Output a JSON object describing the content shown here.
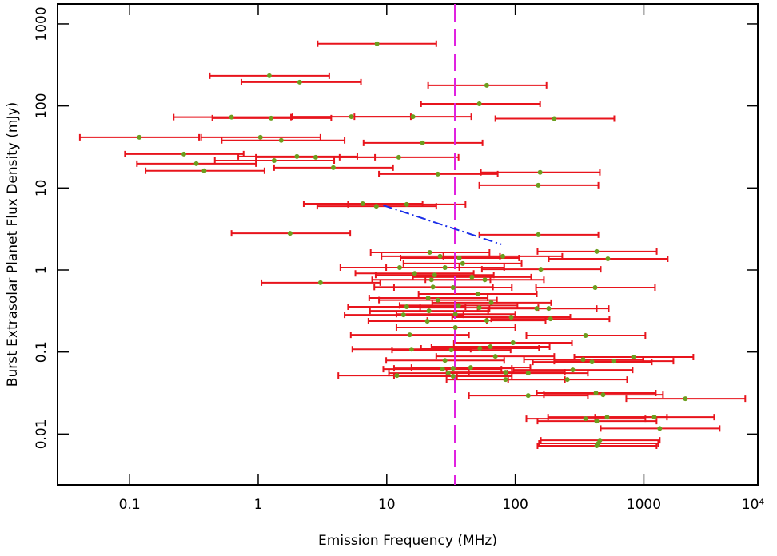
{
  "chart_data": {
    "type": "scatter",
    "x_label": "Emission Frequency (MHz)",
    "y_label": "Burst Extrasolar Planet Flux Density (mJy)",
    "log_x": true,
    "log_y": true,
    "xlim": [
      0.0275,
      7700
    ],
    "ylim": [
      0.0024,
      1750
    ],
    "xticks": [
      0.1,
      1,
      10,
      100,
      1000,
      {
        "value": 10000,
        "label": "10⁴"
      }
    ],
    "yticks": [
      0.01,
      0.1,
      1,
      10,
      100,
      1000
    ],
    "color": "#e8141c",
    "marker_color": "#6c9e1e",
    "label_color": "#00e8f0",
    "x": [
      8.4,
      1.22,
      2.1,
      60,
      52.5,
      0.62,
      1.26,
      5.3,
      16,
      201,
      0.119,
      1.04,
      1.51,
      19,
      0.264,
      2.0,
      2.8,
      12.4,
      1.33,
      0.33,
      3.84,
      0.38,
      25,
      156,
      151,
      6.5,
      8.3,
      14.3,
      1.77,
      151,
      80,
      430,
      525,
      21.6,
      26,
      36.7,
      158,
      12.6,
      28.4,
      16.5,
      46,
      23.6,
      3.05,
      418,
      58,
      22.3,
      22.9,
      32.8,
      51,
      21,
      65,
      25,
      36.2,
      14.3,
      52.5,
      21.3,
      147,
      182,
      34.2,
      13.5,
      93,
      60,
      188,
      20.7,
      34.2,
      15.1,
      352,
      96,
      31.8,
      15.6,
      53,
      64,
      28.4,
      70,
      337,
      395,
      830,
      581,
      280,
      27.2,
      32.8,
      30.1,
      32.8,
      126,
      84,
      12,
      84,
      254,
      482,
      126,
      424,
      2104,
      1205,
      352,
      518,
      430,
      1330,
      455,
      443,
      430,
      45,
      39
    ],
    "values": [
      573,
      233,
      195,
      178,
      106,
      73,
      71,
      74,
      74,
      70,
      41.5,
      41.5,
      38,
      35.5,
      25.9,
      24.2,
      23.7,
      23.7,
      21.6,
      19.8,
      17.7,
      16.2,
      14.8,
      15.5,
      10.8,
      6.44,
      6.0,
      6.3,
      2.8,
      2.69,
      1.47,
      1.68,
      1.37,
      1.64,
      1.47,
      1.4,
      1.02,
      1.07,
      1.07,
      0.91,
      0.82,
      0.87,
      0.7,
      0.61,
      0.76,
      0.76,
      0.62,
      0.61,
      0.51,
      0.456,
      0.4,
      0.43,
      0.37,
      0.356,
      0.348,
      0.318,
      0.34,
      0.34,
      0.29,
      0.284,
      0.266,
      0.243,
      0.254,
      0.238,
      0.199,
      0.162,
      0.159,
      0.13,
      0.106,
      0.108,
      0.111,
      0.116,
      0.079,
      0.0886,
      0.081,
      0.0757,
      0.0867,
      0.0774,
      0.0605,
      0.0618,
      0.0633,
      0.0553,
      0.0506,
      0.0553,
      0.0565,
      0.0516,
      0.0462,
      0.0462,
      0.0302,
      0.0295,
      0.0316,
      0.027,
      0.0161,
      0.0154,
      0.0161,
      0.0144,
      0.0117,
      0.0084,
      0.0077,
      0.0072,
      0.0647,
      1.2
    ],
    "x_low": [
      2.9,
      0.42,
      0.74,
      21,
      18.5,
      0.22,
      0.44,
      1.85,
      5.6,
      70,
      0.041,
      0.36,
      0.52,
      6.6,
      0.092,
      0.7,
      0.96,
      4.3,
      0.46,
      0.114,
      1.33,
      0.133,
      8.7,
      54,
      52.5,
      2.26,
      2.88,
      5.0,
      0.62,
      52.5,
      27.6,
      149,
      182,
      7.5,
      9.1,
      12.8,
      55,
      4.36,
      9.9,
      5.7,
      16,
      8.2,
      1.06,
      145,
      20,
      7.7,
      8.0,
      11.4,
      17.7,
      7.3,
      22.6,
      8.7,
      12.6,
      5.0,
      18.2,
      7.4,
      51,
      63,
      11.9,
      4.7,
      32.3,
      20.7,
      65,
      7.2,
      11.9,
      5.25,
      122,
      33.3,
      11.0,
      5.4,
      18.5,
      22.3,
      9.9,
      24.3,
      117,
      137,
      288,
      201,
      97,
      9.4,
      11.4,
      10.4,
      11.4,
      43.6,
      29.2,
      4.2,
      29.2,
      88,
      167,
      43.6,
      147,
      730,
      418,
      122,
      180,
      149,
      462,
      158,
      153,
      149,
      15.6,
      13.5
    ],
    "x_high": [
      24.3,
      3.57,
      6.3,
      175,
      156,
      1.8,
      3.7,
      15.4,
      45.5,
      589,
      0.347,
      3.05,
      4.7,
      55.6,
      0.77,
      5.9,
      8.1,
      36.2,
      3.9,
      0.96,
      11.2,
      1.12,
      73,
      455,
      443,
      19,
      24.3,
      41,
      5.2,
      443,
      232,
      1260,
      1535,
      63,
      76,
      107,
      462,
      36.7,
      82,
      47.5,
      133,
      68,
      8.9,
      1222,
      167,
      64,
      67,
      94,
      147,
      61,
      190,
      72,
      104,
      41,
      151,
      61.5,
      430,
      533,
      100,
      39.5,
      268,
      172,
      540,
      60,
      100,
      43.6,
      1028,
      276,
      92,
      45,
      153,
      185,
      82,
      201,
      986,
      1153,
      2427,
      1698,
      818,
      78,
      94,
      87,
      94,
      367,
      243,
      35.2,
      243,
      741,
      1409,
      367,
      1239,
      6150,
      3524,
      1028,
      1514,
      1256,
      3890,
      1330,
      1294,
      1256,
      131,
      112
    ],
    "vline": {
      "x": 34,
      "color": "#e020e0"
    },
    "trend_line": {
      "x": [
        9.4,
        78
      ],
      "y": [
        6.15,
        2.05
      ],
      "color": "#1a2ee8"
    }
  }
}
